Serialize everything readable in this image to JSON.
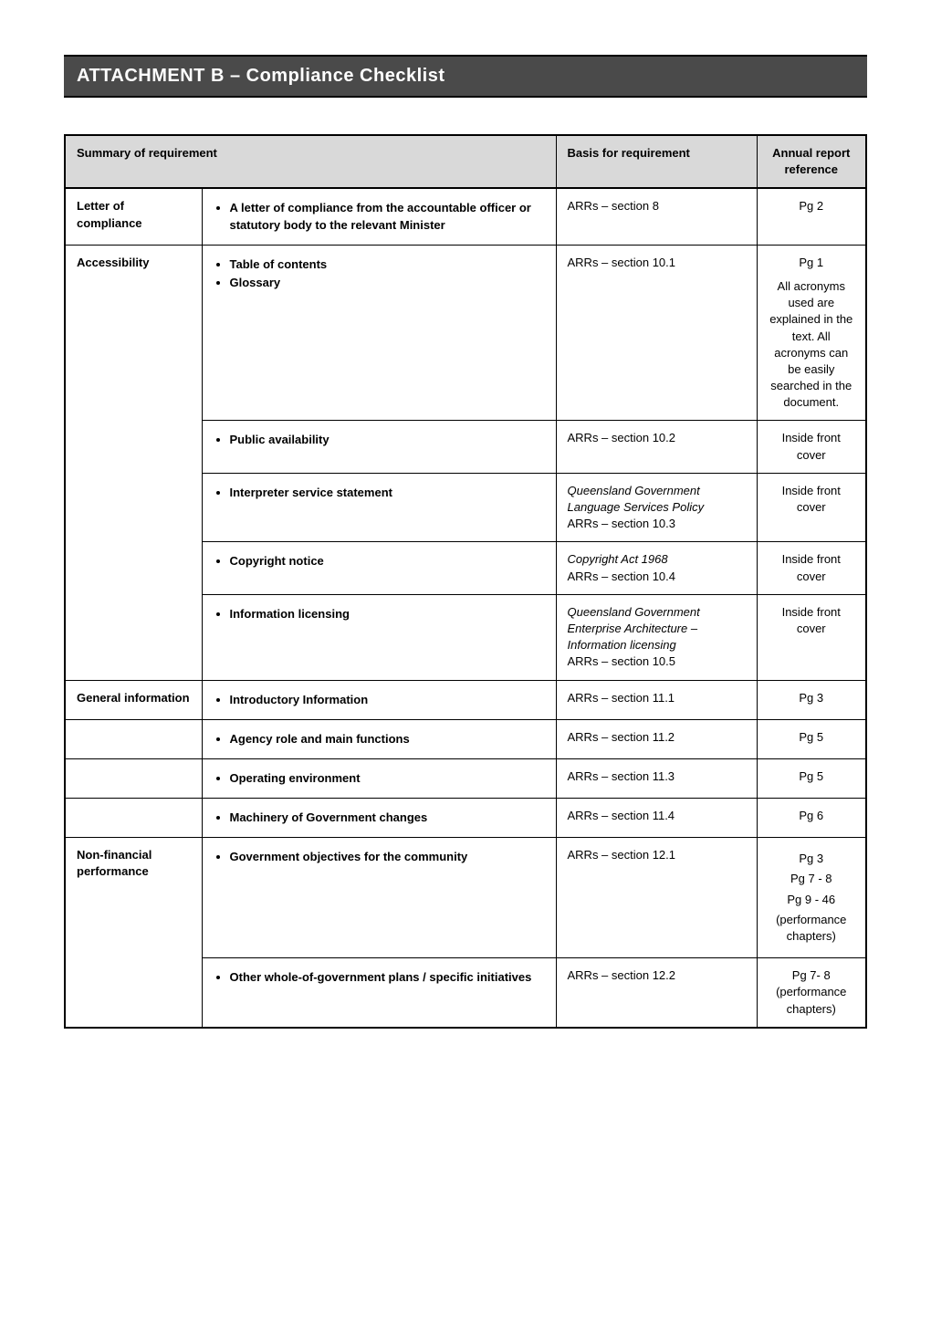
{
  "header": "ATTACHMENT B – Compliance Checklist",
  "thead": {
    "summary": "Summary of requirement",
    "basis": "Basis for requirement",
    "ref": "Annual report reference"
  },
  "rows": [
    {
      "cat": "Letter of compliance",
      "catRows": 1,
      "items": [
        "A letter of compliance from the accountable officer or statutory body to the relevant Minister"
      ],
      "basis": "ARRs – section 8",
      "ref": "Pg 2"
    },
    {
      "cat": "Accessibility",
      "catRows": 5,
      "items": [
        "Table of contents",
        "Glossary"
      ],
      "basis": "ARRs – section 10.1",
      "ref": "Pg 1\nAll acronyms used are explained in the text. All acronyms can be easily searched in the document."
    },
    {
      "items": [
        "Public availability"
      ],
      "basis": "ARRs – section 10.2",
      "ref": "Inside front cover"
    },
    {
      "items": [
        "Interpreter service statement"
      ],
      "basisLines": [
        {
          "text": "Queensland Government Language Services Policy",
          "italic": true
        },
        {
          "text": "ARRs – section 10.3"
        }
      ],
      "ref": "Inside front cover"
    },
    {
      "items": [
        "Copyright notice"
      ],
      "basisLines": [
        {
          "text": "Copyright Act 1968",
          "italic": true
        },
        {
          "text": "ARRs – section 10.4"
        }
      ],
      "ref": "Inside front cover"
    },
    {
      "items": [
        "Information licensing"
      ],
      "basisLines": [
        {
          "text": "Queensland Government Enterprise Architecture – Information licensing",
          "italic": true
        },
        {
          "text": "ARRs – section 10.5"
        }
      ],
      "ref": "Inside front cover"
    },
    {
      "cat": "General information",
      "catRows": 1,
      "items": [
        "Introductory Information"
      ],
      "basis": "ARRs – section 11.1",
      "ref": "Pg 3"
    },
    {
      "cat": "",
      "catRows": 1,
      "items": [
        "Agency role and main functions"
      ],
      "basis": "ARRs – section 11.2",
      "ref": "Pg 5"
    },
    {
      "cat": "",
      "catRows": 1,
      "items": [
        "Operating environment"
      ],
      "basis": "ARRs – section 11.3",
      "ref": "Pg 5"
    },
    {
      "cat": "",
      "catRows": 1,
      "items": [
        "Machinery of Government changes"
      ],
      "basis": "ARRs – section 11.4",
      "ref": "Pg 6"
    },
    {
      "cat": "Non-financial performance",
      "catRows": 2,
      "items": [
        "Government objectives for the community"
      ],
      "basis": "ARRs – section 12.1",
      "refMulti": [
        "Pg 3",
        "Pg 7 - 8",
        "Pg 9 - 46",
        "(performance chapters)"
      ]
    },
    {
      "items": [
        "Other whole-of-government plans / specific initiatives"
      ],
      "basis": "ARRs – section 12.2",
      "ref": "Pg 7- 8 (performance chapters)"
    }
  ]
}
